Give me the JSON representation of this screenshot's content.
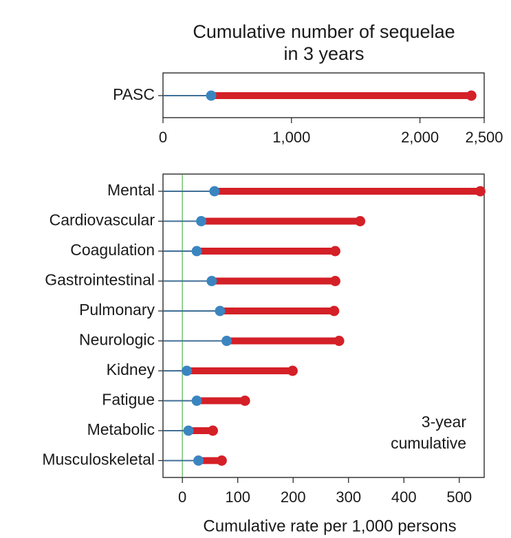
{
  "colors": {
    "high": "#d42027",
    "low": "#3a85c0",
    "stem": "#3f6e96",
    "zero_line": "#7ac77a",
    "frame": "#1a1a1a"
  },
  "chart_data": [
    {
      "type": "dumbbell",
      "title_lines": [
        "Cumulative number of sequelae",
        "in 3 years"
      ],
      "xlabel": "",
      "xlim": [
        0,
        2500
      ],
      "xticks": [
        0,
        1000,
        2000,
        2500
      ],
      "xtick_labels": [
        "0",
        "1,000",
        "2,000",
        "2,500"
      ],
      "grid": false,
      "categories": [
        "PASC"
      ],
      "series": [
        {
          "role": "low",
          "values": [
            375
          ]
        },
        {
          "role": "high",
          "values": [
            2400
          ]
        }
      ]
    },
    {
      "type": "dumbbell",
      "xlabel": "Cumulative rate per 1,000 persons",
      "xlim": [
        -35,
        545
      ],
      "xticks": [
        0,
        100,
        200,
        300,
        400,
        500
      ],
      "xtick_labels": [
        "0",
        "100",
        "200",
        "300",
        "400",
        "500"
      ],
      "grid": false,
      "zero_line": true,
      "annotation_lines": [
        "3-year",
        "cumulative"
      ],
      "categories": [
        "Mental",
        "Cardiovascular",
        "Coagulation",
        "Gastrointestinal",
        "Pulmonary",
        "Neurologic",
        "Kidney",
        "Fatigue",
        "Metabolic",
        "Musculoskeletal"
      ],
      "series": [
        {
          "role": "low",
          "values": [
            58,
            34,
            26,
            53,
            68,
            80,
            8,
            26,
            11,
            29
          ]
        },
        {
          "role": "high",
          "values": [
            538,
            321,
            276,
            276,
            274,
            283,
            199,
            113,
            55,
            71
          ]
        }
      ]
    }
  ]
}
